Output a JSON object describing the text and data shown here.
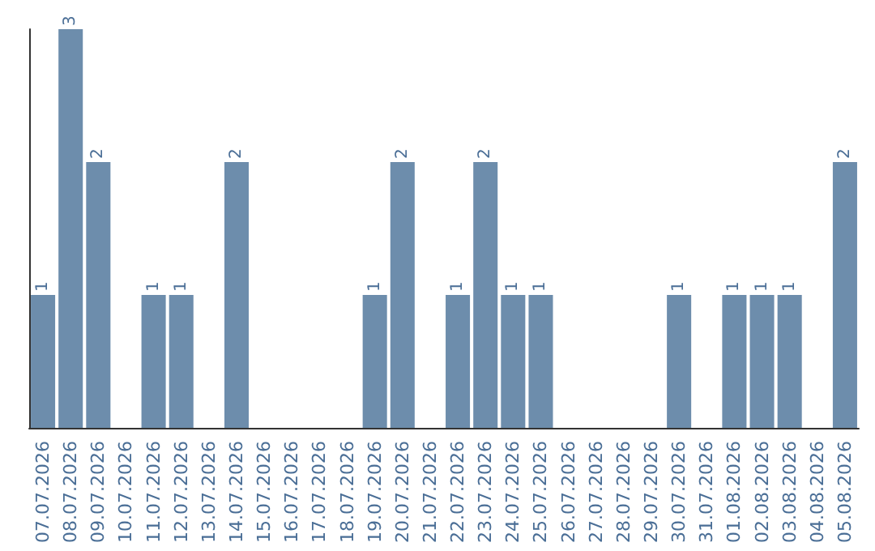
{
  "chart_data": {
    "type": "bar",
    "categories": [
      "07.07.2026",
      "08.07.2026",
      "09.07.2026",
      "10.07.2026",
      "11.07.2026",
      "12.07.2026",
      "13.07.2026",
      "14.07.2026",
      "15.07.2026",
      "16.07.2026",
      "17.07.2026",
      "18.07.2026",
      "19.07.2026",
      "20.07.2026",
      "21.07.2026",
      "22.07.2026",
      "23.07.2026",
      "24.07.2026",
      "25.07.2026",
      "26.07.2026",
      "27.07.2026",
      "28.07.2026",
      "29.07.2026",
      "30.07.2026",
      "31.07.2026",
      "01.08.2026",
      "02.08.2026",
      "03.08.2026",
      "04.08.2026",
      "05.08.2026"
    ],
    "values": [
      1,
      3,
      2,
      0,
      1,
      1,
      0,
      2,
      0,
      0,
      0,
      0,
      1,
      2,
      0,
      1,
      2,
      1,
      1,
      0,
      0,
      0,
      0,
      1,
      0,
      1,
      1,
      1,
      0,
      2
    ],
    "value_labels": [
      "1",
      "3",
      "2",
      null,
      "1",
      "1",
      null,
      "2",
      null,
      null,
      null,
      null,
      "1",
      "2",
      null,
      "1",
      "2",
      "1",
      "1",
      null,
      null,
      null,
      null,
      "1",
      null,
      "1",
      "1",
      "1",
      null,
      "2"
    ],
    "color": "#6d8dac",
    "ylim": [
      0,
      3
    ],
    "tick_labels": "x",
    "grid": false
  }
}
